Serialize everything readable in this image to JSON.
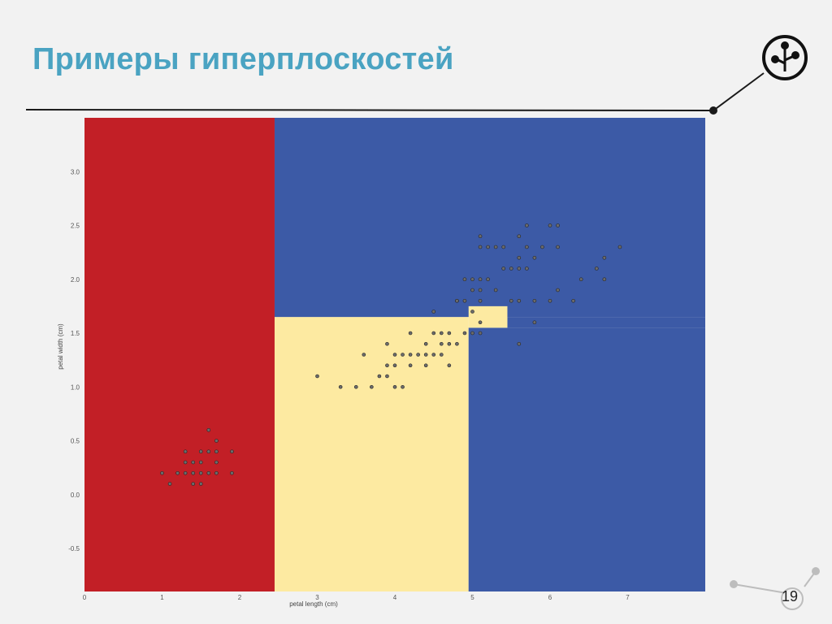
{
  "slide": {
    "title": "Примеры гиперплоскостей",
    "page_number": "19"
  },
  "logo": {
    "icon": "tree-node-icon"
  },
  "colors": {
    "title": "#4aa3c2",
    "class_setosa": "#c21f26",
    "class_versicolor": "#fdeaa1",
    "class_virginica": "#3c5aa6",
    "background": "#f2f2f2"
  },
  "chart_data": {
    "type": "scatter",
    "xlabel": "petal length (cm)",
    "ylabel": "petal width (cm)",
    "xlim": [
      0,
      8
    ],
    "ylim": [
      -0.9,
      3.5
    ],
    "xticks": [
      "0",
      "1",
      "2",
      "3",
      "4",
      "5",
      "6",
      "7"
    ],
    "yticks": [
      "-0.5",
      "0.0",
      "0.5",
      "1.0",
      "1.5",
      "2.0",
      "2.5",
      "3.0"
    ],
    "decision_regions": [
      {
        "class": "setosa",
        "color": "#c21f26",
        "x": [
          0,
          2.45
        ],
        "y": [
          -0.9,
          3.5
        ]
      },
      {
        "class": "versicolor",
        "color": "#fdeaa1",
        "x": [
          2.45,
          4.95
        ],
        "y": [
          -0.9,
          1.65
        ]
      },
      {
        "class": "virginica",
        "color": "#3c5aa6",
        "x": [
          2.45,
          8.0
        ],
        "y": [
          1.65,
          3.5
        ]
      },
      {
        "class": "virginica",
        "color": "#3c5aa6",
        "x": [
          4.95,
          8.0
        ],
        "y": [
          -0.9,
          1.55
        ]
      },
      {
        "class": "virginica",
        "color": "#3c5aa6",
        "x": [
          5.45,
          8.0
        ],
        "y": [
          1.55,
          1.65
        ]
      },
      {
        "class": "versicolor",
        "color": "#fdeaa1",
        "x": [
          4.95,
          5.45
        ],
        "y": [
          1.55,
          1.75
        ]
      }
    ],
    "points": [
      [
        1.0,
        0.2
      ],
      [
        1.1,
        0.1
      ],
      [
        1.2,
        0.2
      ],
      [
        1.3,
        0.2
      ],
      [
        1.3,
        0.3
      ],
      [
        1.3,
        0.4
      ],
      [
        1.4,
        0.1
      ],
      [
        1.4,
        0.2
      ],
      [
        1.4,
        0.3
      ],
      [
        1.5,
        0.1
      ],
      [
        1.5,
        0.2
      ],
      [
        1.5,
        0.3
      ],
      [
        1.5,
        0.4
      ],
      [
        1.6,
        0.2
      ],
      [
        1.6,
        0.4
      ],
      [
        1.6,
        0.6
      ],
      [
        1.7,
        0.2
      ],
      [
        1.7,
        0.3
      ],
      [
        1.7,
        0.4
      ],
      [
        1.7,
        0.5
      ],
      [
        1.9,
        0.2
      ],
      [
        1.9,
        0.4
      ],
      [
        3.0,
        1.1
      ],
      [
        3.3,
        1.0
      ],
      [
        3.5,
        1.0
      ],
      [
        3.6,
        1.3
      ],
      [
        3.7,
        1.0
      ],
      [
        3.8,
        1.1
      ],
      [
        3.9,
        1.1
      ],
      [
        3.9,
        1.2
      ],
      [
        3.9,
        1.4
      ],
      [
        4.0,
        1.0
      ],
      [
        4.0,
        1.2
      ],
      [
        4.0,
        1.3
      ],
      [
        4.1,
        1.0
      ],
      [
        4.1,
        1.3
      ],
      [
        4.2,
        1.2
      ],
      [
        4.2,
        1.3
      ],
      [
        4.2,
        1.5
      ],
      [
        4.3,
        1.3
      ],
      [
        4.4,
        1.2
      ],
      [
        4.4,
        1.3
      ],
      [
        4.4,
        1.4
      ],
      [
        4.5,
        1.3
      ],
      [
        4.5,
        1.5
      ],
      [
        4.5,
        1.7
      ],
      [
        4.6,
        1.3
      ],
      [
        4.6,
        1.4
      ],
      [
        4.6,
        1.5
      ],
      [
        4.7,
        1.2
      ],
      [
        4.7,
        1.4
      ],
      [
        4.7,
        1.5
      ],
      [
        4.8,
        1.4
      ],
      [
        4.8,
        1.8
      ],
      [
        4.9,
        1.5
      ],
      [
        5.0,
        1.7
      ],
      [
        5.1,
        1.6
      ],
      [
        4.8,
        1.8
      ],
      [
        4.9,
        1.8
      ],
      [
        4.9,
        2.0
      ],
      [
        5.0,
        1.5
      ],
      [
        5.0,
        1.9
      ],
      [
        5.0,
        2.0
      ],
      [
        5.1,
        1.5
      ],
      [
        5.1,
        1.8
      ],
      [
        5.1,
        1.9
      ],
      [
        5.1,
        2.0
      ],
      [
        5.1,
        2.3
      ],
      [
        5.1,
        2.4
      ],
      [
        5.2,
        2.0
      ],
      [
        5.2,
        2.3
      ],
      [
        5.3,
        1.9
      ],
      [
        5.3,
        2.3
      ],
      [
        5.4,
        2.1
      ],
      [
        5.4,
        2.3
      ],
      [
        5.5,
        1.8
      ],
      [
        5.5,
        2.1
      ],
      [
        5.6,
        1.4
      ],
      [
        5.6,
        1.8
      ],
      [
        5.6,
        2.1
      ],
      [
        5.6,
        2.2
      ],
      [
        5.6,
        2.4
      ],
      [
        5.7,
        2.1
      ],
      [
        5.7,
        2.3
      ],
      [
        5.7,
        2.5
      ],
      [
        5.8,
        1.6
      ],
      [
        5.8,
        1.8
      ],
      [
        5.8,
        2.2
      ],
      [
        5.9,
        2.3
      ],
      [
        6.0,
        1.8
      ],
      [
        6.0,
        2.5
      ],
      [
        6.1,
        1.9
      ],
      [
        6.1,
        2.3
      ],
      [
        6.1,
        2.5
      ],
      [
        6.3,
        1.8
      ],
      [
        6.4,
        2.0
      ],
      [
        6.6,
        2.1
      ],
      [
        6.7,
        2.0
      ],
      [
        6.7,
        2.2
      ],
      [
        6.9,
        2.3
      ]
    ]
  }
}
